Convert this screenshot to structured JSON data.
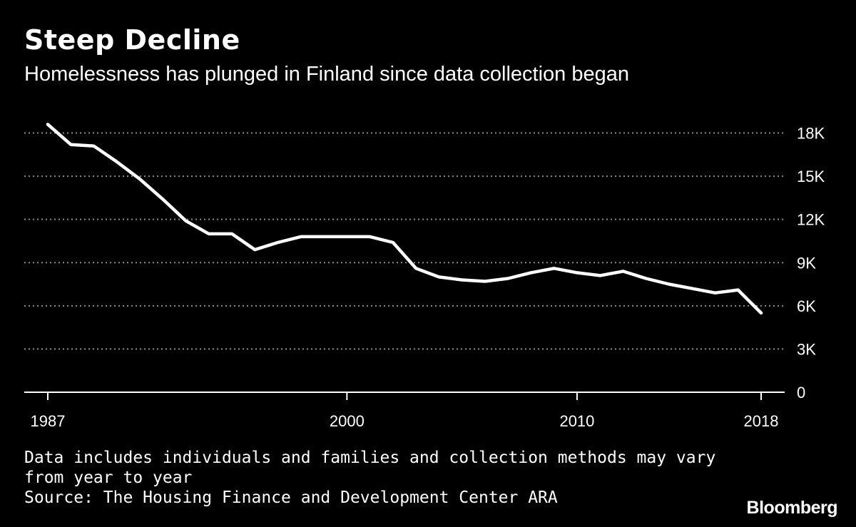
{
  "header": {
    "title": "Steep Decline",
    "subtitle": "Homelessness has plunged in Finland since data collection began"
  },
  "footer": {
    "note_line1": "Data includes individuals and families and collection methods may vary",
    "note_line2": "from year to year",
    "source": "Source: The Housing Finance and Development Center ARA",
    "brand": "Bloomberg"
  },
  "colors": {
    "background": "#000000",
    "line": "#ffffff",
    "grid": "#8c8c8c"
  },
  "chart_data": {
    "type": "line",
    "title": "Steep Decline",
    "subtitle": "Homelessness has plunged in Finland since data collection began",
    "xlabel": "",
    "ylabel": "",
    "xlim": [
      1987,
      2018
    ],
    "ylim": [
      0,
      18000
    ],
    "y_axis_side": "right",
    "grid": "horizontal-dotted",
    "legend": "none",
    "x_ticks": [
      {
        "value": 1987,
        "label": "1987"
      },
      {
        "value": 2000,
        "label": "2000"
      },
      {
        "value": 2010,
        "label": "2010"
      },
      {
        "value": 2018,
        "label": "2018"
      }
    ],
    "y_ticks": [
      {
        "value": 0,
        "label": "0"
      },
      {
        "value": 3000,
        "label": "3K"
      },
      {
        "value": 6000,
        "label": "6K"
      },
      {
        "value": 9000,
        "label": "9K"
      },
      {
        "value": 12000,
        "label": "12K"
      },
      {
        "value": 15000,
        "label": "15K"
      },
      {
        "value": 18000,
        "label": "18K"
      }
    ],
    "series": [
      {
        "x": [
          1987,
          1988,
          1989,
          1990,
          1991,
          1992,
          1993,
          1994,
          1995,
          1996,
          1997,
          1998,
          1999,
          2000,
          2001,
          2002,
          2003,
          2004,
          2005,
          2006,
          2007,
          2008,
          2009,
          2010,
          2011,
          2012,
          2013,
          2014,
          2015,
          2016,
          2017,
          2018
        ],
        "values": [
          18600,
          17200,
          17100,
          16000,
          14800,
          13400,
          11900,
          11000,
          11000,
          9900,
          10400,
          10800,
          10800,
          10800,
          10800,
          10400,
          8600,
          8000,
          7800,
          7700,
          7900,
          8300,
          8600,
          8300,
          8100,
          8400,
          7900,
          7500,
          7200,
          6900,
          7100,
          5500
        ]
      }
    ]
  }
}
